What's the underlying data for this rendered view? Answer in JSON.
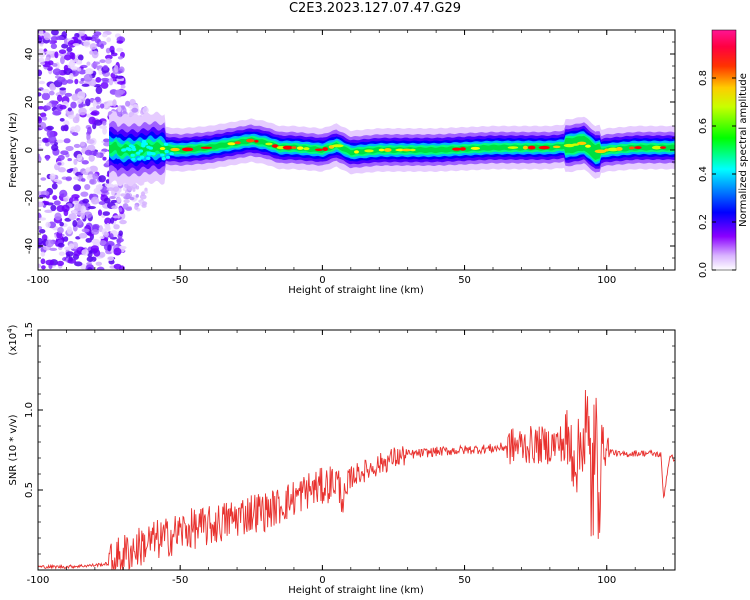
{
  "page": {
    "title": "C2E3.2023.127.07.47.G29"
  },
  "chart_data": [
    {
      "type": "heatmap",
      "title": "C2E3.2023.127.07.47.G29",
      "xlabel": "Height of straight line (km)",
      "ylabel": "Frequency (Hz)",
      "xlim": [
        -100,
        124
      ],
      "ylim": [
        -50,
        50
      ],
      "xticks": [
        -100,
        -50,
        0,
        50,
        100
      ],
      "yticks": [
        -40,
        -20,
        0,
        20,
        40
      ],
      "colorbar": {
        "label": "Normalized spectral amplitude",
        "range": [
          0.0,
          1.0
        ],
        "ticks": [
          "0.0",
          "0.2",
          "0.4",
          "0.6",
          "0.8"
        ],
        "colormap": [
          "#ffffff",
          "#cc99ff",
          "#7a00ff",
          "#0000ff",
          "#00c8ff",
          "#00ff60",
          "#c8ff00",
          "#ff8c00",
          "#ff0000",
          "#ff1493"
        ]
      },
      "ridge": {
        "description_values_x": [
          -72,
          -65,
          -60,
          -50,
          -40,
          -30,
          -25,
          -20,
          -15,
          -10,
          0,
          5,
          10,
          20,
          40,
          60,
          80,
          88,
          92,
          96,
          100,
          110,
          124
        ],
        "center_freq_hz": [
          0,
          0,
          1,
          0,
          1,
          3,
          4,
          3,
          1,
          1,
          0,
          2,
          -1,
          0,
          0,
          1,
          1,
          2,
          3,
          -1,
          0,
          1,
          1
        ]
      },
      "grid": false
    },
    {
      "type": "line",
      "xlabel": "Height of straight line (km)",
      "ylabel": "SNR (10 * v/v)",
      "y_multiplier": "(x10",
      "y_multiplier_exp": "4",
      "y_multiplier_close": ")",
      "xlim": [
        -100,
        124
      ],
      "ylim": [
        0,
        1.5
      ],
      "xticks": [
        -100,
        -50,
        0,
        50,
        100
      ],
      "yticks": [
        0.5,
        1.0,
        1.5
      ],
      "ytick_labels": [
        "0.5",
        "1.0",
        "1.5"
      ],
      "series": [
        {
          "color": "#e8312e",
          "x": [
            -100,
            -90,
            -80,
            -75,
            -70,
            -65,
            -60,
            -55,
            -50,
            -45,
            -40,
            -35,
            -30,
            -25,
            -20,
            -15,
            -10,
            -5,
            0,
            5,
            8,
            10,
            12,
            15,
            20,
            25,
            30,
            40,
            50,
            60,
            70,
            80,
            85,
            88,
            90,
            92,
            94,
            96,
            98,
            100,
            105,
            110,
            115,
            119,
            120,
            122,
            124
          ],
          "y": [
            0.02,
            0.02,
            0.03,
            0.04,
            0.1,
            0.14,
            0.18,
            0.2,
            0.24,
            0.26,
            0.27,
            0.3,
            0.33,
            0.36,
            0.37,
            0.4,
            0.45,
            0.5,
            0.52,
            0.56,
            0.42,
            0.58,
            0.6,
            0.62,
            0.66,
            0.7,
            0.72,
            0.74,
            0.75,
            0.76,
            0.78,
            0.78,
            0.8,
            0.75,
            0.7,
            0.9,
            0.6,
            0.6,
            0.8,
            0.75,
            0.72,
            0.73,
            0.73,
            0.72,
            0.45,
            0.7,
            0.7
          ]
        }
      ],
      "grid": false
    }
  ]
}
